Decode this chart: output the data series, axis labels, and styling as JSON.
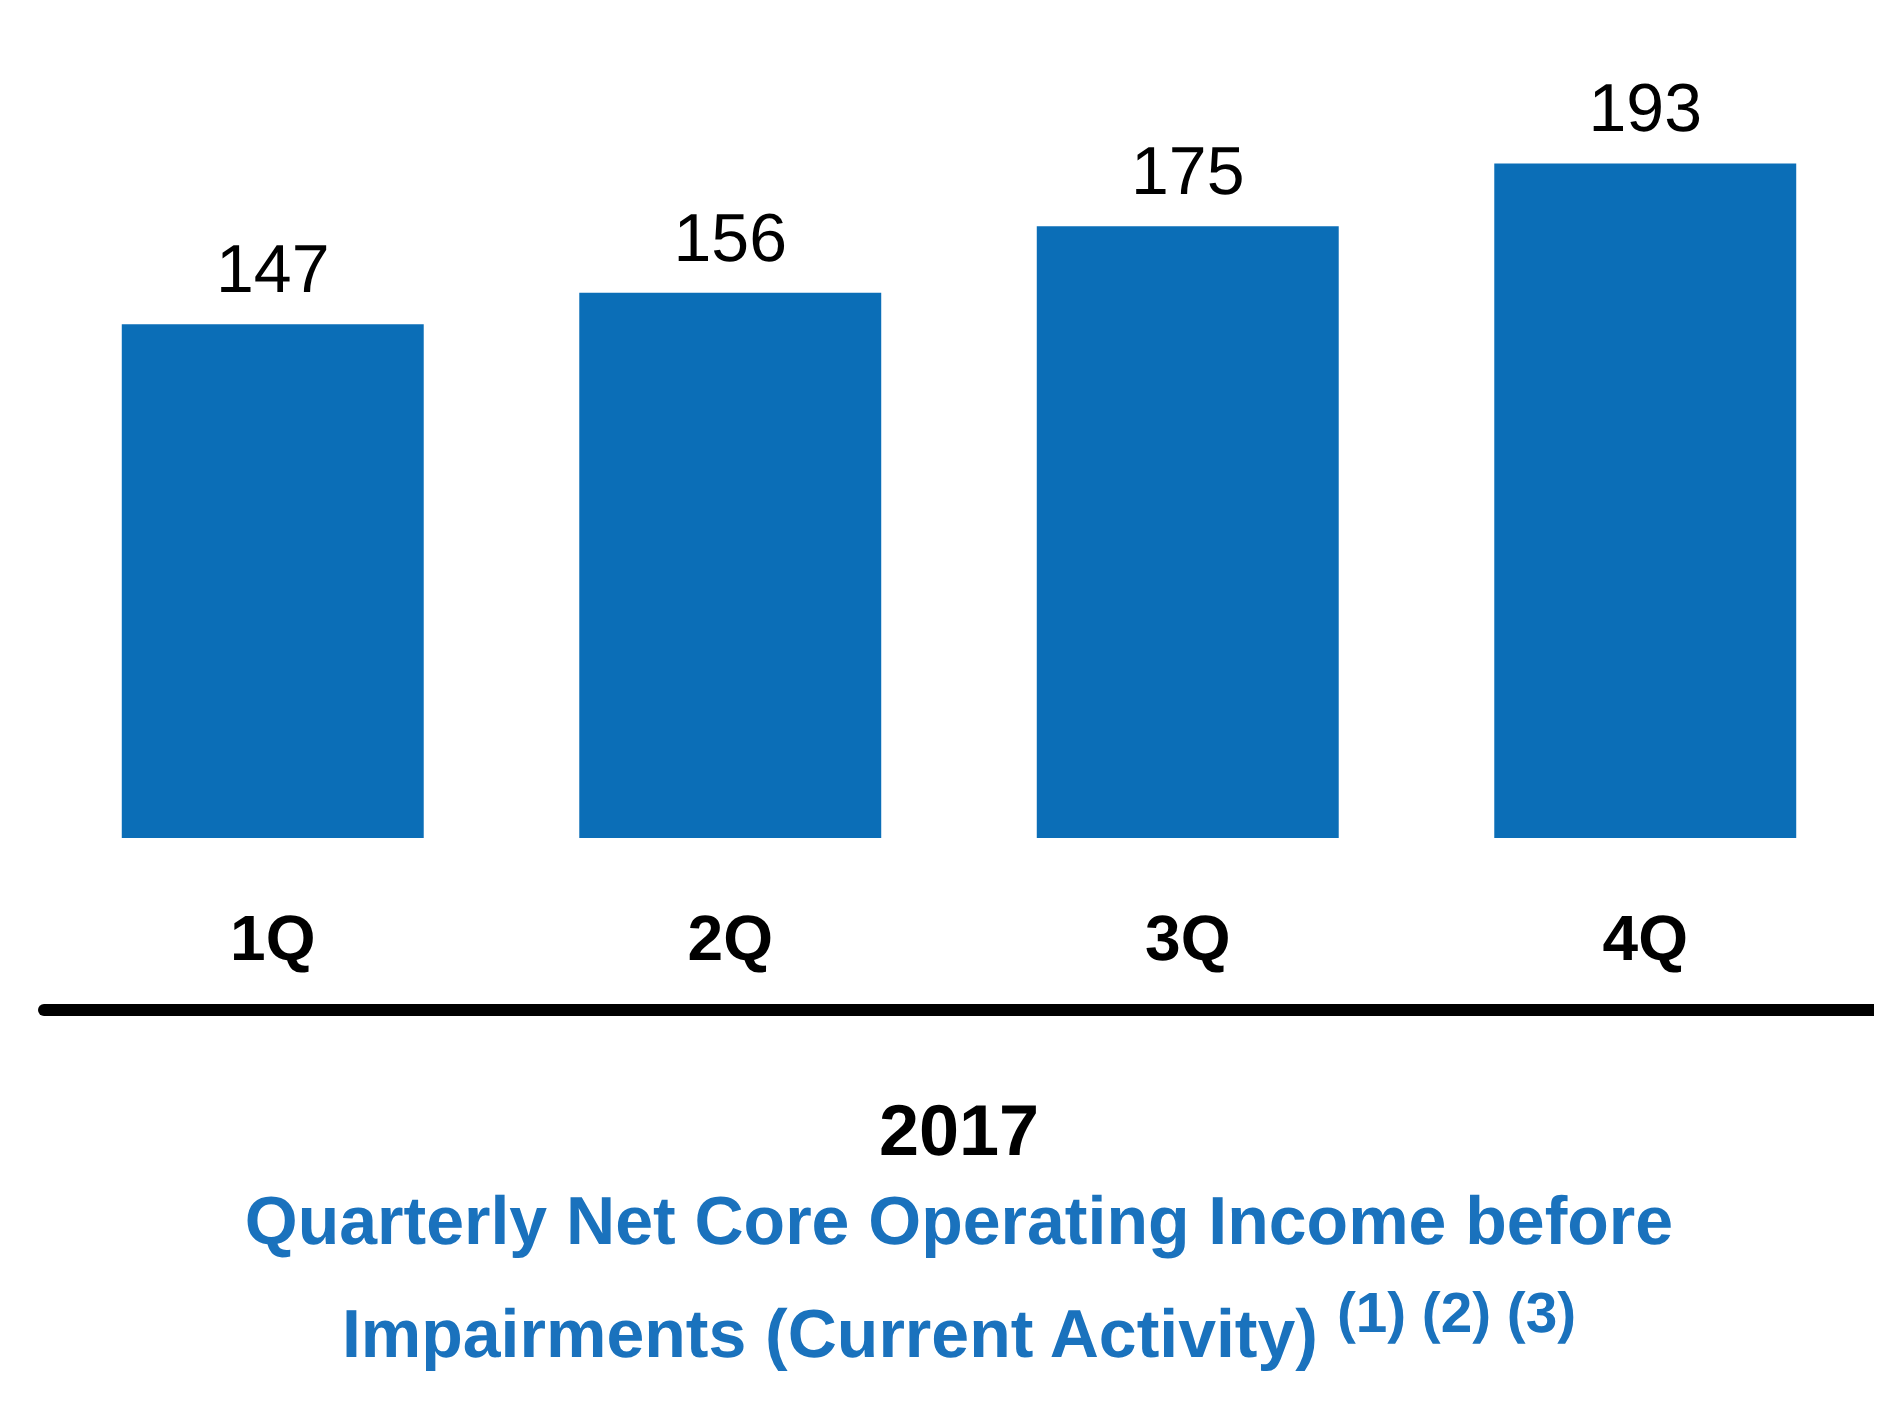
{
  "chart_data": {
    "type": "bar",
    "categories": [
      "1Q",
      "2Q",
      "3Q",
      "4Q"
    ],
    "values": [
      147,
      156,
      175,
      193
    ],
    "color": "#0b6eb7",
    "xlabel": "2017",
    "title": "Quarterly Net Core Operating Income before Impairments (Current Activity) $^{(1) (2) (3)}$",
    "data_labels": true
  }
}
